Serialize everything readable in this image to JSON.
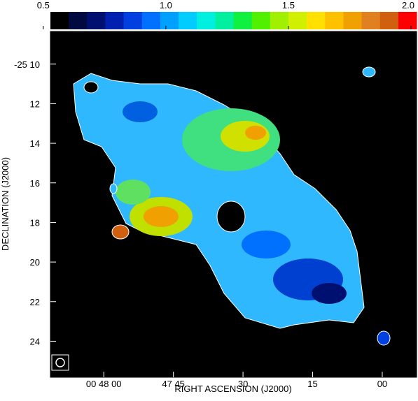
{
  "chart_data": {
    "type": "image",
    "xlabel": "RIGHT ASCENSION (J2000)",
    "ylabel": "DECLINATION (J2000)",
    "xlim": [
      71.5,
      -7.4
    ],
    "xticks": [
      {
        "value": 60,
        "label": "00 48 00"
      },
      {
        "value": 45,
        "label": "47 45"
      },
      30,
      15,
      {
        "value": 0,
        "label": "00"
      }
    ],
    "ylim": [
      8.35,
      25.82
    ],
    "yticks": [
      {
        "value": 10,
        "label": "-25 10"
      },
      12,
      14,
      16,
      18,
      20,
      22,
      24
    ],
    "clim": [
      0.529,
      2.023
    ],
    "cticks": [
      0.5,
      {
        "value": 1.0,
        "label": "1.0"
      },
      1.5,
      {
        "value": 2.0,
        "label": "2.0"
      }
    ],
    "colormap": [
      "#000000",
      "#000a40",
      "#001070",
      "#0020b0",
      "#0040e0",
      "#0070ff",
      "#00a0ff",
      "#00ccff",
      "#00f0e0",
      "#00f0a0",
      "#10f040",
      "#50f000",
      "#a0f000",
      "#d0f000",
      "#ffe000",
      "#ffc000",
      "#f0a000",
      "#e08020",
      "#d06010",
      "#ff0000"
    ]
  }
}
